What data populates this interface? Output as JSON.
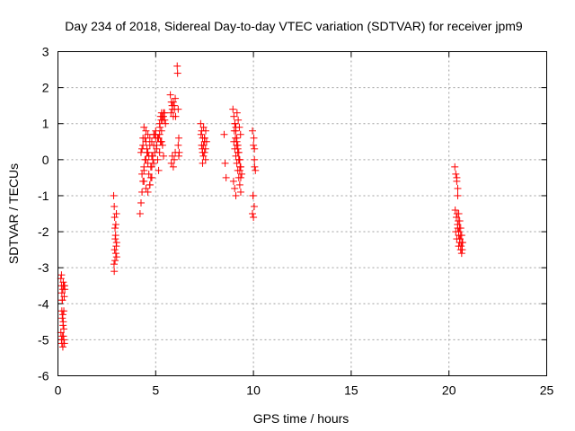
{
  "chart_data": {
    "type": "scatter",
    "title": "Day 234 of 2018, Sidereal Day-to-day VTEC variation (SDTVAR) for receiver jpm9",
    "xlabel": "GPS time / hours",
    "ylabel": "SDTVAR / TECUs",
    "xlim": [
      0,
      25
    ],
    "ylim": [
      -6,
      3
    ],
    "xticks": [
      0,
      5,
      10,
      15,
      20,
      25
    ],
    "yticks": [
      -6,
      -5,
      -4,
      -3,
      -2,
      -1,
      0,
      1,
      2,
      3
    ],
    "grid": true,
    "marker": "+",
    "color": "#ff0000",
    "series": [
      {
        "name": "SDTVAR",
        "x": [
          0.15,
          0.18,
          0.2,
          0.22,
          0.25,
          0.27,
          0.3,
          0.32,
          0.35,
          0.15,
          0.18,
          0.2,
          0.22,
          0.25,
          0.28,
          0.3,
          0.33,
          0.2,
          0.22,
          0.25,
          0.27,
          0.3,
          0.18,
          0.22,
          0.26,
          0.3,
          0.34,
          2.85,
          2.88,
          2.9,
          2.92,
          2.95,
          2.98,
          3.0,
          2.87,
          2.9,
          2.93,
          2.96,
          2.99,
          2.88,
          2.92,
          2.96,
          3.0,
          4.2,
          4.25,
          4.3,
          4.35,
          4.4,
          4.45,
          4.3,
          4.35,
          4.4,
          4.5,
          4.55,
          4.6,
          4.65,
          4.7,
          4.75,
          4.8,
          4.85,
          4.9,
          4.95,
          5.0,
          5.05,
          5.1,
          5.15,
          5.2,
          5.25,
          5.3,
          5.35,
          5.4,
          4.5,
          4.6,
          4.7,
          4.8,
          4.9,
          5.0,
          5.1,
          5.2,
          5.3,
          4.4,
          4.5,
          4.6,
          4.7,
          4.8,
          4.25,
          4.35,
          4.45,
          4.55,
          4.65,
          4.75,
          4.85,
          4.95,
          5.05,
          5.15,
          5.25,
          4.3,
          4.4,
          4.5,
          4.6,
          4.7,
          4.8,
          4.9,
          5.2,
          5.25,
          5.3,
          5.35,
          5.4,
          5.45,
          5.5,
          5.22,
          5.28,
          5.34,
          5.4,
          5.46,
          5.75,
          5.8,
          5.85,
          5.9,
          5.95,
          6.0,
          5.78,
          5.84,
          5.9,
          5.96,
          6.02,
          5.8,
          5.85,
          5.9,
          5.95,
          6.0,
          6.1,
          6.12,
          6.15,
          6.18,
          6.2,
          6.15,
          6.18,
          7.3,
          7.35,
          7.4,
          7.45,
          7.5,
          7.55,
          7.6,
          7.32,
          7.38,
          7.44,
          7.5,
          7.56,
          7.35,
          7.4,
          7.45,
          7.5,
          7.55,
          7.4,
          7.5,
          8.5,
          8.55,
          8.6,
          8.95,
          9.0,
          9.05,
          9.1,
          9.15,
          9.2,
          9.25,
          9.3,
          9.35,
          9.4,
          8.98,
          9.04,
          9.1,
          9.16,
          9.22,
          9.28,
          9.34,
          9.0,
          9.05,
          9.1,
          9.15,
          9.2,
          9.25,
          9.3,
          9.35,
          9.02,
          9.08,
          9.14,
          9.2,
          9.26,
          9.32,
          9.05,
          9.15,
          9.25,
          9.35,
          9.1,
          9.2,
          9.3,
          9.95,
          10.0,
          10.05,
          10.1,
          9.98,
          10.04,
          9.95,
          10.0,
          10.05,
          9.98,
          10.02,
          10.06,
          20.3,
          20.35,
          20.4,
          20.45,
          20.5,
          20.55,
          20.6,
          20.65,
          20.7,
          20.32,
          20.38,
          20.44,
          20.5,
          20.56,
          20.62,
          20.68,
          20.35,
          20.4,
          20.45,
          20.5,
          20.55,
          20.6,
          20.65,
          20.42,
          20.48,
          20.54,
          20.6,
          20.66,
          20.4,
          20.45,
          20.5,
          20.55
        ],
        "y": [
          -3.3,
          -3.5,
          -3.7,
          -3.9,
          -3.6,
          -3.4,
          -3.5,
          -3.8,
          -3.6,
          -4.8,
          -5.0,
          -5.1,
          -4.9,
          -5.2,
          -4.9,
          -5.0,
          -5.1,
          -4.2,
          -4.4,
          -4.3,
          -4.5,
          -4.2,
          -3.2,
          -3.9,
          -4.6,
          -4.7,
          -3.5,
          -1.0,
          -1.3,
          -1.6,
          -1.9,
          -2.1,
          -2.4,
          -2.7,
          -2.9,
          -2.5,
          -2.2,
          -1.8,
          -1.5,
          -3.1,
          -2.8,
          -2.6,
          -2.3,
          -1.5,
          -1.2,
          -0.9,
          -0.6,
          -0.3,
          0.0,
          0.3,
          0.6,
          0.9,
          0.5,
          0.2,
          -0.1,
          -0.4,
          -0.7,
          -0.5,
          -0.2,
          0.1,
          0.4,
          0.7,
          0.6,
          0.3,
          0.0,
          -0.3,
          0.2,
          0.5,
          0.8,
          0.4,
          0.1,
          0.8,
          0.7,
          0.6,
          0.5,
          0.7,
          0.8,
          0.6,
          0.7,
          0.5,
          -0.6,
          -0.8,
          -0.9,
          -0.7,
          -0.5,
          0.2,
          0.4,
          0.6,
          0.3,
          0.1,
          -0.2,
          0.0,
          0.2,
          0.4,
          0.6,
          0.5,
          -0.4,
          -0.2,
          0.0,
          0.2,
          0.4,
          0.1,
          -0.1,
          1.0,
          1.2,
          1.3,
          1.1,
          1.2,
          1.3,
          1.0,
          0.9,
          1.1,
          1.2,
          1.3,
          1.1,
          1.8,
          1.6,
          1.4,
          1.2,
          1.5,
          1.7,
          1.3,
          1.5,
          1.6,
          1.4,
          1.2,
          -0.1,
          0.1,
          -0.2,
          0.0,
          0.2,
          2.6,
          2.4,
          1.4,
          0.6,
          0.2,
          0.4,
          0.1,
          1.0,
          0.8,
          0.6,
          0.4,
          0.2,
          0.0,
          0.5,
          0.7,
          0.3,
          0.1,
          0.6,
          0.8,
          0.4,
          0.2,
          0.9,
          0.5,
          0.3,
          -0.1,
          0.6,
          0.7,
          -0.1,
          -0.5,
          1.4,
          1.2,
          1.0,
          0.8,
          0.6,
          0.4,
          0.2,
          0.0,
          -0.2,
          -0.4,
          -0.6,
          -0.8,
          -1.0,
          1.3,
          1.1,
          0.9,
          0.7,
          0.5,
          0.3,
          0.1,
          -0.1,
          -0.3,
          -0.5,
          -0.7,
          -0.9,
          0.8,
          0.6,
          0.4,
          0.2,
          0.0,
          -0.2,
          1.0,
          0.5,
          0.0,
          -0.5,
          0.9,
          0.3,
          -0.3,
          0.8,
          0.4,
          0.0,
          -0.3,
          -1.0,
          -1.3,
          -1.5,
          -1.6,
          0.3,
          -1.0,
          0.6,
          -0.2,
          -0.2,
          -0.4,
          -0.6,
          -0.8,
          -1.5,
          -1.7,
          -1.9,
          -2.1,
          -2.3,
          -1.4,
          -1.6,
          -1.8,
          -2.0,
          -2.2,
          -2.4,
          -2.5,
          -2.0,
          -2.2,
          -1.9,
          -2.1,
          -2.3,
          -2.5,
          -2.6,
          -1.5,
          -1.7,
          -1.9,
          -2.1,
          -2.3,
          -0.5,
          -1.0,
          -2.4,
          -2.2
        ]
      }
    ]
  }
}
